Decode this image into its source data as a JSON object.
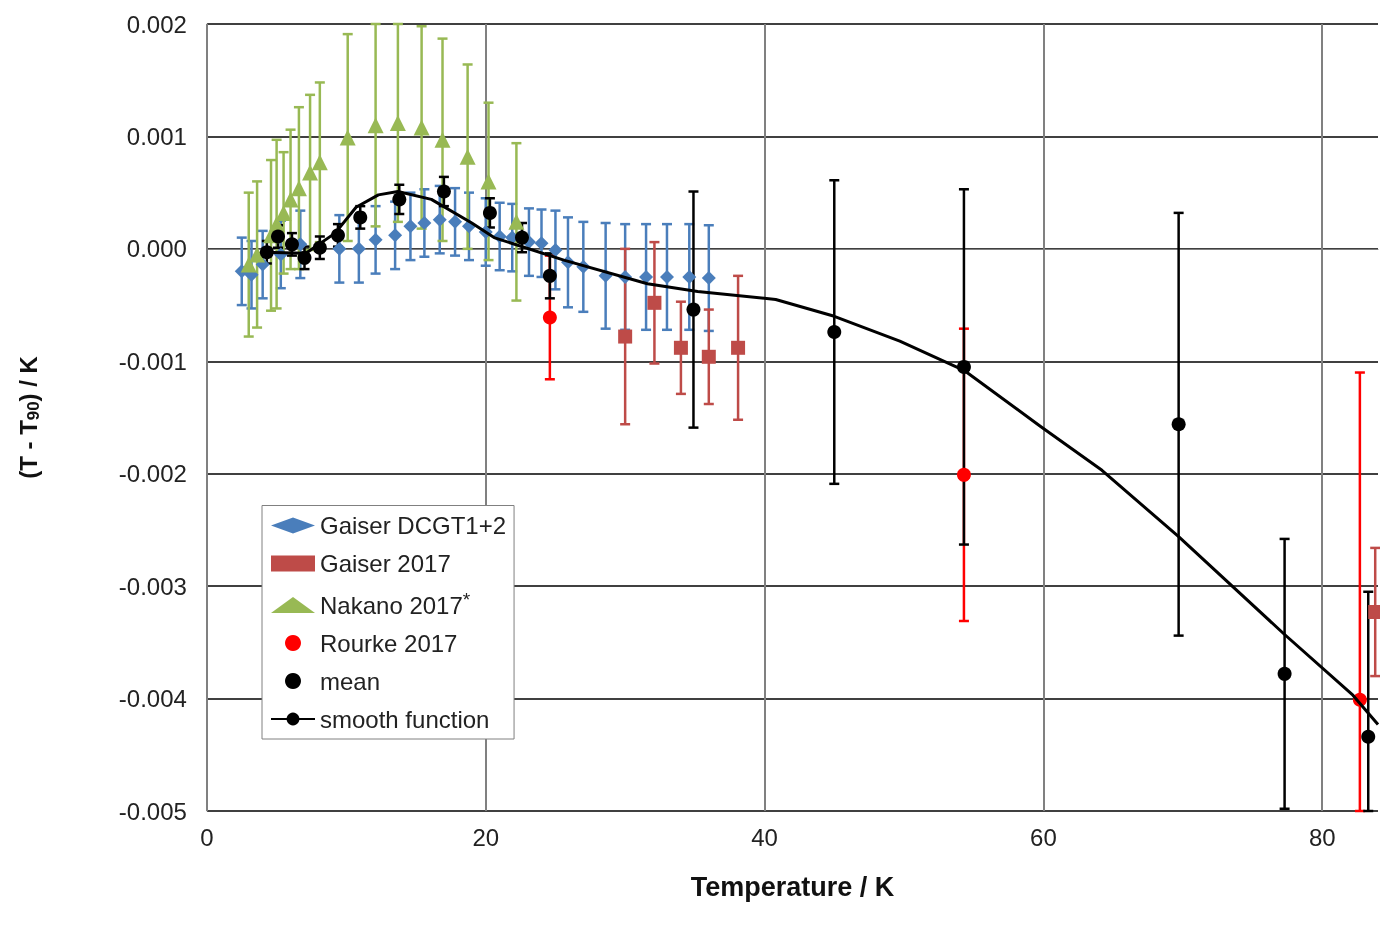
{
  "chart_data": {
    "type": "scatter",
    "xlabel": "Temperature / K",
    "ylabel": "(T - T$_{90}$) / K",
    "xlim": [
      0,
      84
    ],
    "xticks": [
      0,
      20,
      40,
      60,
      80
    ],
    "ylim": [
      -0.005,
      0.002
    ],
    "yticks": [
      0.002,
      0.001,
      {
        "value": 0,
        "label": "0.000"
      },
      -0.001,
      -0.002,
      -0.003,
      -0.004,
      -0.005
    ],
    "grid": true,
    "legend": "bottom left",
    "series": [
      {
        "name": "Gaiser DCGT1+2",
        "color": "#4a7ebb",
        "marker": "diamond",
        "x": [
          2.5,
          3.2,
          4.0,
          5.3,
          6.7,
          8.1,
          9.5,
          10.9,
          12.1,
          13.5,
          14.6,
          15.6,
          16.7,
          17.8,
          18.8,
          20.0,
          21.0,
          21.9,
          23.1,
          24.0,
          25.0,
          25.9,
          27.0,
          28.6,
          30.0,
          31.5,
          33.0,
          34.6,
          36.0
        ],
        "values": [
          -0.0002,
          -0.00023,
          -0.00014,
          -5e-05,
          4e-05,
          null,
          0.0,
          0.0,
          8e-05,
          0.00012,
          0.0002,
          0.00023,
          0.00026,
          0.00024,
          0.0002,
          0.00015,
          0.00011,
          0.0001,
          6e-05,
          5e-05,
          -1e-05,
          -0.00012,
          -0.00016,
          -0.00024,
          -0.00025,
          -0.00025,
          -0.00025,
          -0.00025,
          -0.00026
        ],
        "errors": [
          0.0003,
          0.0003,
          0.0003,
          0.0003,
          0.0003,
          null,
          0.0003,
          0.0003,
          0.0003,
          0.0003,
          0.0003,
          0.0003,
          0.0003,
          0.0003,
          0.0003,
          0.0003,
          0.0003,
          0.0003,
          0.0003,
          0.0003,
          0.00035,
          0.0004,
          0.0004,
          0.00047,
          0.00047,
          0.00047,
          0.00047,
          0.00047,
          0.00047
        ]
      },
      {
        "name": "Gaiser 2017",
        "color": "#be4b48",
        "marker": "square",
        "x": [
          30.0,
          32.1,
          34.0,
          36.0,
          38.1,
          83.8
        ],
        "values": [
          -0.00078,
          -0.00048,
          -0.00088,
          -0.00096,
          -0.00088,
          -0.00323
        ],
        "errors": [
          0.00078,
          0.00054,
          0.00041,
          0.00042,
          0.00064,
          0.00057
        ]
      },
      {
        "name": "Nakano 2017$^{*}$",
        "color": "#98b954",
        "marker": "triangle",
        "x": [
          3.0,
          3.6,
          4.1,
          4.6,
          5.0,
          5.5,
          6.0,
          6.6,
          7.4,
          8.1,
          10.1,
          12.1,
          13.7,
          15.4,
          16.9,
          18.7,
          20.2,
          22.2
        ],
        "values": [
          -0.00014,
          -5e-05,
          null,
          0.00012,
          0.00022,
          0.00032,
          0.00044,
          0.00054,
          0.00068,
          0.00077,
          0.00099,
          0.0011,
          0.00112,
          0.00108,
          0.00097,
          0.00082,
          0.0006,
          0.00024
        ],
        "errors": [
          0.00064,
          0.00065,
          null,
          0.00067,
          0.00075,
          0.00054,
          0.00062,
          0.00072,
          0.00069,
          0.00071,
          0.00092,
          0.0009,
          0.00088,
          0.0009,
          0.0009,
          0.00082,
          0.0007,
          0.0007
        ]
      },
      {
        "name": "Rourke 2017",
        "color": "#ff0000",
        "marker": "circle",
        "x": [
          24.6,
          54.3,
          82.7
        ],
        "values": [
          -0.00061,
          -0.00201,
          -0.00401
        ],
        "errors": [
          0.00055,
          0.0013,
          [
            -0.005,
            -0.0011
          ]
        ]
      },
      {
        "name": "mean",
        "color": "#000000",
        "marker": "circle",
        "x": [
          4.3,
          5.1,
          6.1,
          7.0,
          8.1,
          9.4,
          11.0,
          13.8,
          17.0,
          20.3,
          22.6,
          24.6,
          34.9,
          45.0,
          54.3,
          69.7,
          77.3,
          83.3
        ],
        "values": [
          -3e-05,
          0.00011,
          4e-05,
          -8e-05,
          1e-05,
          0.00012,
          0.00028,
          0.00044,
          0.00051,
          0.00032,
          0.0001,
          -0.00024,
          -0.00054,
          -0.00074,
          -0.00105,
          -0.00156,
          -0.00378,
          -0.00434
        ],
        "errors": [
          0.0001,
          0.0001,
          0.0001,
          0.0001,
          0.0001,
          0.0001,
          0.0001,
          0.00013,
          0.00013,
          0.00013,
          0.00013,
          0.0002,
          0.00105,
          0.00135,
          0.00158,
          0.00188,
          0.0012,
          [
            -0.005,
            -0.00305
          ]
        ]
      },
      {
        "name": "smooth function",
        "type": "line",
        "color": "#000000",
        "marker": "none",
        "line_style": "solid",
        "x": [
          4.0,
          7.1,
          9.2,
          10.7,
          12.3,
          13.7,
          16.1,
          19.0,
          20.6,
          25.6,
          31.6,
          35.2,
          40.8,
          45.0,
          49.7,
          54.3,
          59.8,
          64.2,
          69.7,
          77.3,
          82.2,
          84.0
        ],
        "values": [
          -3e-05,
          -4e-05,
          0.00014,
          0.00037,
          0.00048,
          0.00051,
          0.00044,
          0.00023,
          0.0001,
          -0.0001,
          -0.00031,
          -0.00038,
          -0.00045,
          -0.0006,
          -0.00082,
          -0.00108,
          -0.00158,
          -0.00197,
          -0.00256,
          -0.00343,
          -0.00397,
          -0.00423
        ]
      }
    ]
  }
}
